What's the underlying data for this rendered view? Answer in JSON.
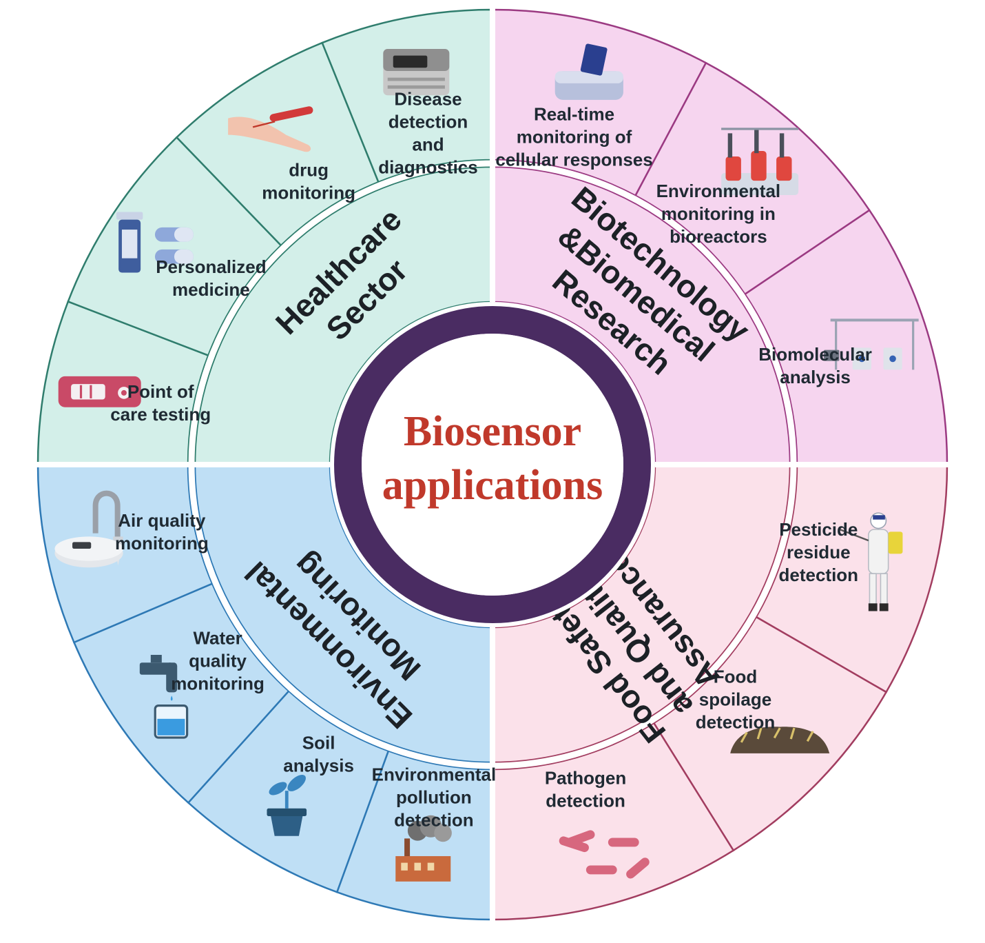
{
  "center": {
    "line1": "Biosensor",
    "line2": "applications"
  },
  "colors": {
    "healthcare_fill": "#d3efe9",
    "healthcare_border": "#2f7d6d",
    "biotech_fill": "#f6d5ef",
    "biotech_border": "#9b3a82",
    "food_fill": "#fbe1ea",
    "food_border": "#a23d60",
    "environment_fill": "#bfdff5",
    "environment_border": "#2e79b5",
    "ring": "#4a2c62",
    "center_text": "#c0392b"
  },
  "sectors": [
    {
      "id": "healthcare",
      "title_lines": [
        "Healthcare",
        "Sector"
      ],
      "items": [
        {
          "lines": [
            "Point of",
            "care testing"
          ],
          "icon": "test-strip-icon"
        },
        {
          "lines": [
            "Personalized",
            "medicine"
          ],
          "icon": "pill-bottle-icon"
        },
        {
          "lines": [
            "drug",
            "monitoring"
          ],
          "icon": "blood-draw-icon"
        },
        {
          "lines": [
            "Disease",
            "detection",
            "and",
            "diagnostics"
          ],
          "icon": "diagnostic-machine-icon"
        }
      ]
    },
    {
      "id": "biotech",
      "title_lines": [
        "Biotechnology",
        "&Biomedical",
        "Research"
      ],
      "items": [
        {
          "lines": [
            "Real-time",
            "monitoring of",
            "cellular responses"
          ],
          "icon": "cell-analyzer-icon"
        },
        {
          "lines": [
            "Environmental",
            "monitoring in",
            "bioreactors"
          ],
          "icon": "bioreactor-icon"
        },
        {
          "lines": [
            "Biomolecular",
            "analysis"
          ],
          "icon": "lab-setup-icon"
        }
      ]
    },
    {
      "id": "food",
      "title_lines": [
        "Food Safety",
        "and Quality",
        "Assurance"
      ],
      "items": [
        {
          "lines": [
            "Pesticide",
            "residue",
            "detection"
          ],
          "icon": "sprayer-person-icon"
        },
        {
          "lines": [
            "Food",
            "spoilage",
            "detection"
          ],
          "icon": "spoiled-food-icon"
        },
        {
          "lines": [
            "Pathogen",
            "detection"
          ],
          "icon": "bacteria-icon"
        }
      ]
    },
    {
      "id": "environment",
      "title_lines": [
        "Environmental",
        "Monitoring"
      ],
      "items": [
        {
          "lines": [
            "Environmental",
            "pollution",
            "detection"
          ],
          "icon": "factory-smoke-icon"
        },
        {
          "lines": [
            "Soil",
            "analysis"
          ],
          "icon": "plant-pot-icon"
        },
        {
          "lines": [
            "Water",
            "quality",
            "monitoring"
          ],
          "icon": "tap-water-icon"
        },
        {
          "lines": [
            "Air quality",
            "monitoring"
          ],
          "icon": "air-sampler-icon"
        }
      ]
    }
  ]
}
